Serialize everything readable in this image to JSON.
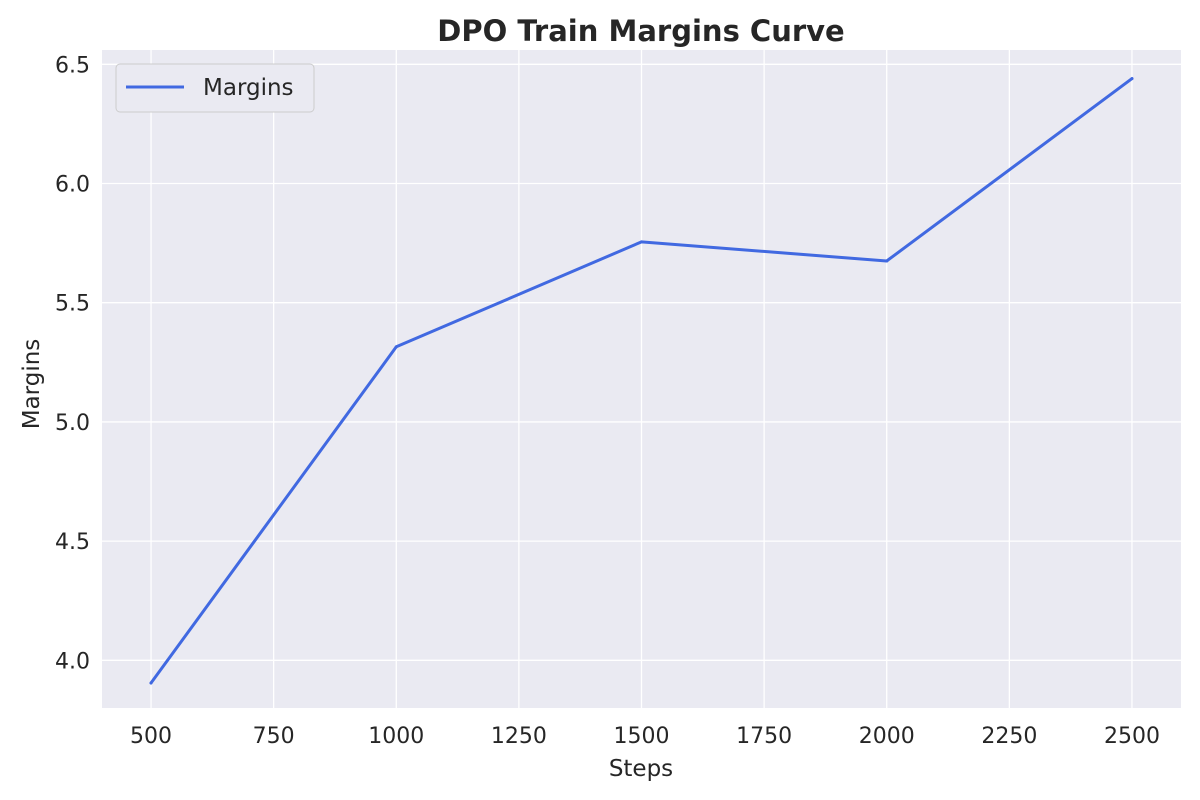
{
  "chart_data": {
    "type": "line",
    "title": "DPO Train Margins Curve",
    "xlabel": "Steps",
    "ylabel": "Margins",
    "x": [
      500,
      1000,
      1500,
      2000,
      2500
    ],
    "series": [
      {
        "name": "Margins",
        "values": [
          3.905,
          5.315,
          5.755,
          5.675,
          6.44
        ],
        "color": "#4169e1"
      }
    ],
    "xlim": [
      400,
      2600
    ],
    "ylim": [
      3.8,
      6.56
    ],
    "xticks": [
      500,
      750,
      1000,
      1250,
      1500,
      1750,
      2000,
      2250,
      2500
    ],
    "xtick_labels": [
      "500",
      "750",
      "1000",
      "1250",
      "1500",
      "1750",
      "2000",
      "2250",
      "2500"
    ],
    "yticks": [
      4.0,
      4.5,
      5.0,
      5.5,
      6.0,
      6.5
    ],
    "ytick_labels": [
      "4.0",
      "4.5",
      "5.0",
      "5.5",
      "6.0",
      "6.5"
    ],
    "grid": true,
    "legend_position": "top-left",
    "background_color": "#eaeaf2",
    "grid_color": "#ffffff"
  }
}
